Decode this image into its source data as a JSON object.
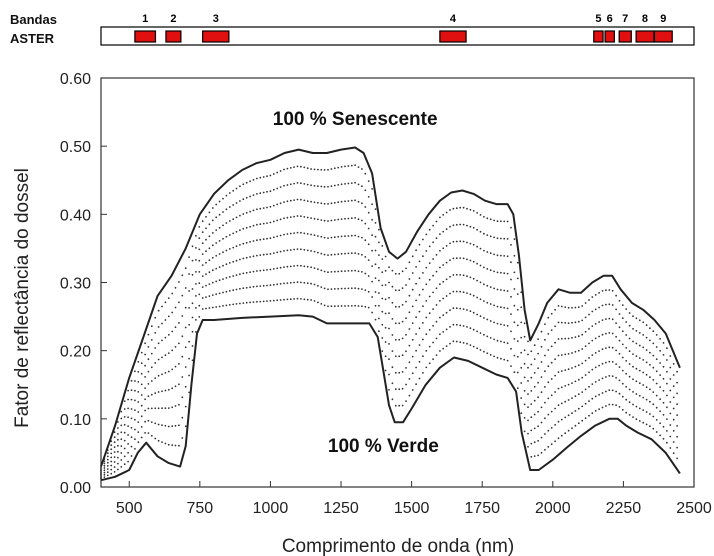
{
  "bands_header": {
    "line1": "Bandas",
    "line2": "ASTER"
  },
  "colors": {
    "band_fill": "#e01010",
    "band_stroke": "#000000",
    "curve": "#222222",
    "dots": "#333333",
    "axis": "#333333",
    "background": "#ffffff"
  },
  "chart_data": {
    "type": "line",
    "title": "",
    "xlabel": "Comprimento de onda (nm)",
    "ylabel": "Fator de reflectância do dossel",
    "xlim": [
      400,
      2500
    ],
    "ylim": [
      0,
      0.6
    ],
    "xticks": [
      500,
      750,
      1000,
      1250,
      1500,
      1750,
      2000,
      2250,
      2500
    ],
    "xtick_labels": [
      "500",
      "750",
      "1000",
      "1250",
      "1500",
      "1750",
      "2000",
      "2250",
      "2500"
    ],
    "yticks": [
      0.0,
      0.1,
      0.2,
      0.3,
      0.4,
      0.5,
      0.6
    ],
    "ytick_labels": [
      "0.00",
      "0.10",
      "0.20",
      "0.30",
      "0.40",
      "0.50",
      "0.60"
    ],
    "grid": false,
    "annotations": [
      {
        "text": "100 % Senescente",
        "x": 1300,
        "y": 0.54
      },
      {
        "text": "100 % Verde",
        "x": 1400,
        "y": 0.06
      }
    ],
    "aster_bands": [
      {
        "label": "1",
        "range": [
          520,
          600
        ]
      },
      {
        "label": "2",
        "range": [
          630,
          690
        ]
      },
      {
        "label": "3",
        "range": [
          760,
          860
        ]
      },
      {
        "label": "4",
        "range": [
          1600,
          1700
        ]
      },
      {
        "label": "5",
        "range": [
          2145,
          2185
        ]
      },
      {
        "label": "6",
        "range": [
          2185,
          2225
        ]
      },
      {
        "label": "7",
        "range": [
          2235,
          2285
        ]
      },
      {
        "label": "8",
        "range": [
          2295,
          2365
        ]
      },
      {
        "label": "9",
        "range": [
          2360,
          2430
        ]
      }
    ],
    "intermediate_series_count": 9,
    "series": [
      {
        "name": "100 % Senescente",
        "x": [
          400,
          450,
          500,
          550,
          600,
          650,
          700,
          750,
          800,
          850,
          900,
          950,
          1000,
          1050,
          1100,
          1150,
          1200,
          1250,
          1300,
          1330,
          1360,
          1390,
          1420,
          1450,
          1480,
          1520,
          1560,
          1600,
          1640,
          1680,
          1720,
          1760,
          1800,
          1840,
          1860,
          1880,
          1900,
          1920,
          1950,
          1980,
          2020,
          2060,
          2100,
          2140,
          2180,
          2210,
          2240,
          2280,
          2320,
          2360,
          2400,
          2450
        ],
        "y": [
          0.03,
          0.09,
          0.16,
          0.22,
          0.28,
          0.31,
          0.35,
          0.4,
          0.43,
          0.45,
          0.465,
          0.475,
          0.48,
          0.49,
          0.495,
          0.49,
          0.49,
          0.495,
          0.498,
          0.49,
          0.46,
          0.38,
          0.345,
          0.335,
          0.345,
          0.375,
          0.4,
          0.42,
          0.432,
          0.435,
          0.43,
          0.42,
          0.415,
          0.415,
          0.4,
          0.34,
          0.26,
          0.215,
          0.24,
          0.27,
          0.29,
          0.285,
          0.285,
          0.3,
          0.31,
          0.31,
          0.29,
          0.27,
          0.26,
          0.245,
          0.225,
          0.175
        ]
      },
      {
        "name": "100 % Verde",
        "x": [
          400,
          450,
          500,
          530,
          560,
          600,
          640,
          680,
          700,
          720,
          740,
          760,
          800,
          900,
          1000,
          1100,
          1150,
          1200,
          1300,
          1350,
          1380,
          1400,
          1420,
          1440,
          1470,
          1500,
          1550,
          1600,
          1650,
          1700,
          1750,
          1800,
          1840,
          1870,
          1890,
          1920,
          1950,
          2000,
          2050,
          2100,
          2150,
          2200,
          2230,
          2260,
          2300,
          2350,
          2400,
          2450
        ],
        "y": [
          0.01,
          0.015,
          0.025,
          0.05,
          0.065,
          0.045,
          0.035,
          0.03,
          0.06,
          0.15,
          0.225,
          0.245,
          0.245,
          0.248,
          0.25,
          0.252,
          0.25,
          0.24,
          0.24,
          0.24,
          0.22,
          0.17,
          0.12,
          0.095,
          0.095,
          0.115,
          0.15,
          0.175,
          0.19,
          0.185,
          0.175,
          0.165,
          0.16,
          0.14,
          0.08,
          0.025,
          0.025,
          0.04,
          0.058,
          0.075,
          0.09,
          0.1,
          0.1,
          0.09,
          0.08,
          0.07,
          0.05,
          0.02
        ]
      }
    ]
  }
}
